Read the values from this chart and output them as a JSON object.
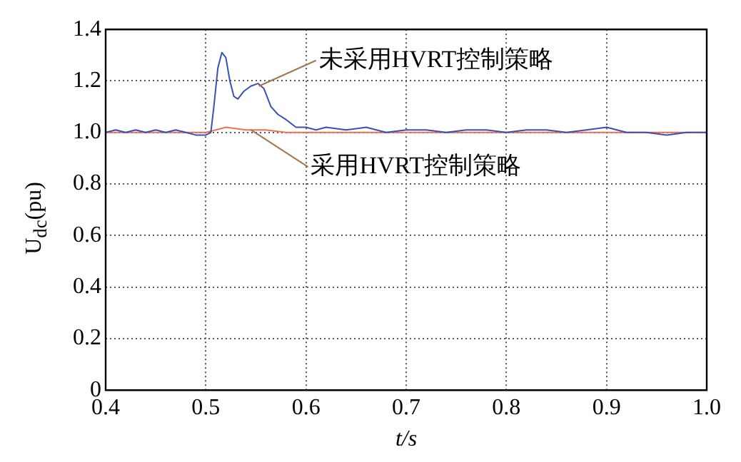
{
  "chart_data": {
    "type": "line",
    "xlabel": "t/s",
    "ylabel": "U$_{dc}$(pu)",
    "xlim": [
      0.4,
      1.0
    ],
    "xticks": [
      0.4,
      0.5,
      0.6,
      0.7,
      0.8,
      0.9,
      {
        "value": 1.0,
        "label": "1.0"
      }
    ],
    "ylim": [
      0,
      1.4
    ],
    "yticks": [
      0,
      0.2,
      0.4,
      0.6,
      0.8,
      {
        "value": 1.0,
        "label": "1.0"
      },
      1.2,
      1.4
    ],
    "grid": true,
    "legend": false,
    "marker": "none",
    "line_style": "solid",
    "series": [
      {
        "color": "#3b4fb8",
        "x": [
          0.4,
          0.41,
          0.42,
          0.43,
          0.44,
          0.45,
          0.46,
          0.47,
          0.48,
          0.49,
          0.5,
          0.505,
          0.508,
          0.512,
          0.516,
          0.52,
          0.524,
          0.528,
          0.532,
          0.538,
          0.545,
          0.552,
          0.558,
          0.565,
          0.572,
          0.58,
          0.59,
          0.6,
          0.61,
          0.62,
          0.64,
          0.66,
          0.68,
          0.7,
          0.72,
          0.74,
          0.76,
          0.78,
          0.8,
          0.82,
          0.84,
          0.86,
          0.88,
          0.9,
          0.92,
          0.94,
          0.96,
          0.98,
          1.0
        ],
        "values": [
          1.0,
          1.01,
          1.0,
          1.01,
          1.0,
          1.01,
          1.0,
          1.01,
          1.0,
          0.99,
          0.99,
          1.0,
          1.1,
          1.25,
          1.31,
          1.29,
          1.2,
          1.14,
          1.13,
          1.16,
          1.18,
          1.19,
          1.17,
          1.1,
          1.07,
          1.05,
          1.02,
          1.02,
          1.01,
          1.02,
          1.01,
          1.02,
          1.0,
          1.01,
          1.01,
          1.0,
          1.01,
          1.01,
          1.0,
          1.01,
          1.01,
          1.0,
          1.01,
          1.02,
          1.0,
          1.0,
          0.99,
          1.0,
          1.0
        ]
      },
      {
        "color": "#f07050",
        "x": [
          0.4,
          0.5,
          0.51,
          0.52,
          0.54,
          0.56,
          0.58,
          1.0
        ],
        "values": [
          1.0,
          1.0,
          1.01,
          1.02,
          1.01,
          1.01,
          1.0,
          1.0
        ]
      }
    ],
    "annotations": [
      {
        "text": "未采用HVRT控制策略",
        "x": 0.553,
        "y": 1.18
      },
      {
        "text": "采用HVRT控制策略",
        "x": 0.545,
        "y": 1.01
      }
    ]
  }
}
